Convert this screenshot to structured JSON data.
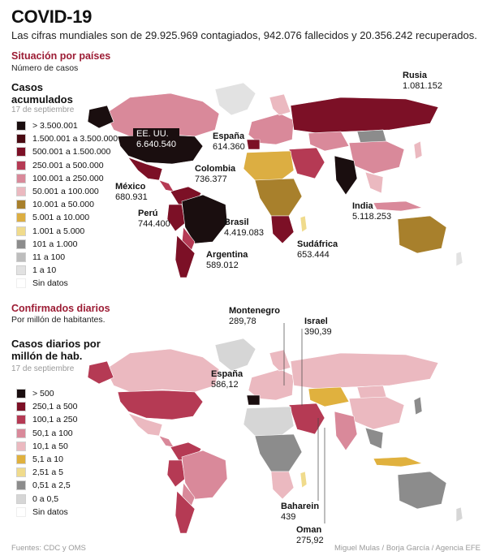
{
  "header": {
    "title": "COVID-19",
    "subtitle": "Las cifras mundiales son de 29.925.969 contagiados, 942.076 fallecidos y 20.356.242 recuperados."
  },
  "map1": {
    "section_title": "Situación por países",
    "section_sub": "Número de casos",
    "legend_title_1": "Casos",
    "legend_title_2": "acumulados",
    "legend_date": "17 de septiembre",
    "legend": [
      {
        "label": "> 3.500.001",
        "color": "#1a0e0f"
      },
      {
        "label": "1.500.001 a 3.500.000",
        "color": "#4a0a12"
      },
      {
        "label": "500.001 a 1.500.000",
        "color": "#7c1026"
      },
      {
        "label": "250.001 a 500.000",
        "color": "#b53a54"
      },
      {
        "label": "100.001 a 250.000",
        "color": "#d9899a"
      },
      {
        "label": "50.001 a 100.000",
        "color": "#ebb9c0"
      },
      {
        "label": "10.001 a 50.000",
        "color": "#a8802c"
      },
      {
        "label": "5.001 a 10.000",
        "color": "#dcae42"
      },
      {
        "label": "1.001 a 5.000",
        "color": "#f0db8c"
      },
      {
        "label": "101 a 1.000",
        "color": "#8c8c8c"
      },
      {
        "label": "11 a 100",
        "color": "#bdbdbd"
      },
      {
        "label": "1 a 10",
        "color": "#e2e2e2"
      },
      {
        "label": "Sin datos",
        "color": "#ffffff"
      }
    ],
    "labels": {
      "usa_name": "EE. UU.",
      "usa_val": "6.640.540",
      "russia_name": "Rusia",
      "russia_val": "1.081.152",
      "spain_name": "España",
      "spain_val": "614.360",
      "colombia_name": "Colombia",
      "colombia_val": "736.377",
      "mexico_name": "México",
      "mexico_val": "680.931",
      "peru_name": "Perú",
      "peru_val": "744.400",
      "brazil_name": "Brasil",
      "brazil_val": "4.419.083",
      "argentina_name": "Argentina",
      "argentina_val": "589.012",
      "india_name": "India",
      "india_val": "5.118.253",
      "sa_name": "Sudáfrica",
      "sa_val": "653.444"
    }
  },
  "map2": {
    "section_title": "Confirmados diarios",
    "section_sub": "Por millón de habitantes.",
    "legend_title_1": "Casos diarios por",
    "legend_title_2": "millón de hab.",
    "legend_date": "17 de septiembre",
    "legend": [
      {
        "label": "> 500",
        "color": "#1a0e0f"
      },
      {
        "label": "250,1 a 500",
        "color": "#7c1026"
      },
      {
        "label": "100,1 a 250",
        "color": "#b53a54"
      },
      {
        "label": "50,1 a 100",
        "color": "#d9899a"
      },
      {
        "label": "10,1 a 50",
        "color": "#ebb9c0"
      },
      {
        "label": "5,1 a 10",
        "color": "#e0b13e"
      },
      {
        "label": "2,51 a 5",
        "color": "#f0db8c"
      },
      {
        "label": "0,51 a 2,5",
        "color": "#8c8c8c"
      },
      {
        "label": "0 a 0,5",
        "color": "#d6d6d6"
      },
      {
        "label": "Sin datos",
        "color": "#ffffff"
      }
    ],
    "labels": {
      "montenegro_name": "Montenegro",
      "montenegro_val": "289,78",
      "israel_name": "Israel",
      "israel_val": "390,39",
      "spain_name": "España",
      "spain_val": "586,12",
      "bahrain_name": "Baharein",
      "bahrain_val": "439",
      "oman_name": "Oman",
      "oman_val": "275,92"
    }
  },
  "footer": {
    "sources": "Fuentes: CDC y OMS",
    "credits": "Miguel Mulas / Borja García / Agencia EFE"
  }
}
